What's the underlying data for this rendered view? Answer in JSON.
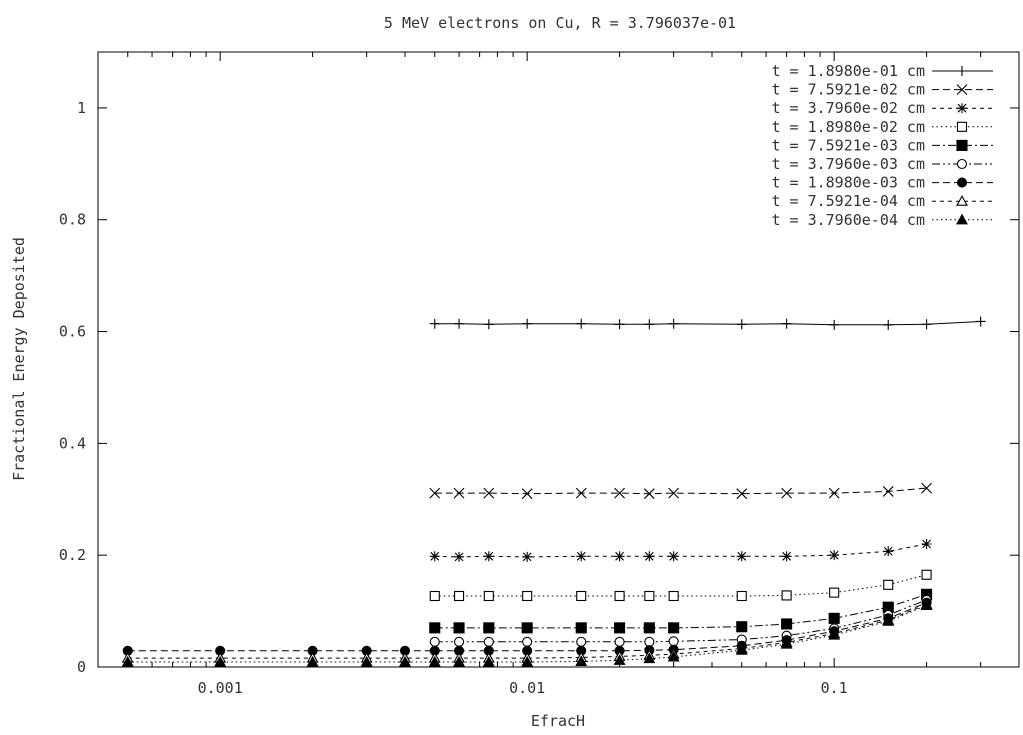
{
  "chart_data": {
    "type": "line",
    "title": "5 MeV electrons on Cu, R = 3.796037e-01",
    "xlabel": "EfracH",
    "ylabel": "Fractional Energy Deposited",
    "x_scale": "log",
    "xlim": [
      0.0004,
      0.4
    ],
    "ylim": [
      0,
      1.1
    ],
    "x_ticks": [
      "0.001",
      "0.01",
      "0.1"
    ],
    "y_ticks": [
      "0",
      "0.2",
      "0.4",
      "0.6",
      "0.8",
      "1"
    ],
    "grid": false,
    "legend_position": "top-right",
    "series": [
      {
        "name": "t = 1.8980e-01 cm",
        "marker": "plus",
        "dash": "solid",
        "points": [
          [
            0.005,
            0.614
          ],
          [
            0.006,
            0.614
          ],
          [
            0.0075,
            0.613
          ],
          [
            0.01,
            0.614
          ],
          [
            0.015,
            0.614
          ],
          [
            0.02,
            0.613
          ],
          [
            0.025,
            0.613
          ],
          [
            0.03,
            0.614
          ],
          [
            0.05,
            0.613
          ],
          [
            0.07,
            0.614
          ],
          [
            0.1,
            0.612
          ],
          [
            0.15,
            0.612
          ],
          [
            0.2,
            0.613
          ],
          [
            0.3,
            0.618
          ]
        ]
      },
      {
        "name": "t = 7.5921e-02 cm",
        "marker": "cross",
        "dash": "dashed",
        "points": [
          [
            0.005,
            0.311
          ],
          [
            0.006,
            0.311
          ],
          [
            0.0075,
            0.311
          ],
          [
            0.01,
            0.31
          ],
          [
            0.015,
            0.311
          ],
          [
            0.02,
            0.311
          ],
          [
            0.025,
            0.31
          ],
          [
            0.03,
            0.311
          ],
          [
            0.05,
            0.31
          ],
          [
            0.07,
            0.311
          ],
          [
            0.1,
            0.311
          ],
          [
            0.15,
            0.314
          ],
          [
            0.2,
            0.32
          ]
        ]
      },
      {
        "name": "t = 3.7960e-02 cm",
        "marker": "star",
        "dash": "short-dash",
        "points": [
          [
            0.005,
            0.198
          ],
          [
            0.006,
            0.197
          ],
          [
            0.0075,
            0.198
          ],
          [
            0.01,
            0.197
          ],
          [
            0.015,
            0.198
          ],
          [
            0.02,
            0.198
          ],
          [
            0.025,
            0.198
          ],
          [
            0.03,
            0.198
          ],
          [
            0.05,
            0.198
          ],
          [
            0.07,
            0.198
          ],
          [
            0.1,
            0.2
          ],
          [
            0.15,
            0.207
          ],
          [
            0.2,
            0.22
          ]
        ]
      },
      {
        "name": "t = 1.8980e-02 cm",
        "marker": "open-square",
        "dash": "dotted",
        "points": [
          [
            0.005,
            0.127
          ],
          [
            0.006,
            0.127
          ],
          [
            0.0075,
            0.127
          ],
          [
            0.01,
            0.127
          ],
          [
            0.015,
            0.127
          ],
          [
            0.02,
            0.127
          ],
          [
            0.025,
            0.127
          ],
          [
            0.03,
            0.127
          ],
          [
            0.05,
            0.127
          ],
          [
            0.07,
            0.128
          ],
          [
            0.1,
            0.133
          ],
          [
            0.15,
            0.147
          ],
          [
            0.2,
            0.165
          ]
        ]
      },
      {
        "name": "t = 7.5921e-03 cm",
        "marker": "filled-square",
        "dash": "dash-dot",
        "points": [
          [
            0.005,
            0.07
          ],
          [
            0.006,
            0.07
          ],
          [
            0.0075,
            0.07
          ],
          [
            0.01,
            0.07
          ],
          [
            0.015,
            0.07
          ],
          [
            0.02,
            0.07
          ],
          [
            0.025,
            0.07
          ],
          [
            0.03,
            0.07
          ],
          [
            0.05,
            0.072
          ],
          [
            0.07,
            0.077
          ],
          [
            0.1,
            0.087
          ],
          [
            0.15,
            0.107
          ],
          [
            0.2,
            0.13
          ]
        ]
      },
      {
        "name": "t = 3.7960e-03 cm",
        "marker": "open-circle",
        "dash": "dash-dot-dot",
        "points": [
          [
            0.005,
            0.045
          ],
          [
            0.006,
            0.045
          ],
          [
            0.0075,
            0.045
          ],
          [
            0.01,
            0.045
          ],
          [
            0.015,
            0.045
          ],
          [
            0.02,
            0.045
          ],
          [
            0.025,
            0.045
          ],
          [
            0.03,
            0.046
          ],
          [
            0.05,
            0.049
          ],
          [
            0.07,
            0.056
          ],
          [
            0.1,
            0.069
          ],
          [
            0.15,
            0.093
          ],
          [
            0.2,
            0.12
          ]
        ]
      },
      {
        "name": "t = 1.8980e-03 cm",
        "marker": "filled-circle",
        "dash": "dashed",
        "points": [
          [
            0.0005,
            0.029
          ],
          [
            0.001,
            0.029
          ],
          [
            0.002,
            0.029
          ],
          [
            0.003,
            0.029
          ],
          [
            0.004,
            0.029
          ],
          [
            0.005,
            0.029
          ],
          [
            0.006,
            0.029
          ],
          [
            0.0075,
            0.029
          ],
          [
            0.01,
            0.029
          ],
          [
            0.015,
            0.029
          ],
          [
            0.02,
            0.029
          ],
          [
            0.025,
            0.03
          ],
          [
            0.03,
            0.031
          ],
          [
            0.05,
            0.038
          ],
          [
            0.07,
            0.048
          ],
          [
            0.1,
            0.064
          ],
          [
            0.15,
            0.087
          ],
          [
            0.2,
            0.115
          ]
        ]
      },
      {
        "name": "t = 7.5921e-04 cm",
        "marker": "open-triangle",
        "dash": "short-dash",
        "points": [
          [
            0.0005,
            0.016
          ],
          [
            0.001,
            0.016
          ],
          [
            0.002,
            0.016
          ],
          [
            0.003,
            0.016
          ],
          [
            0.004,
            0.016
          ],
          [
            0.005,
            0.016
          ],
          [
            0.006,
            0.016
          ],
          [
            0.0075,
            0.016
          ],
          [
            0.01,
            0.016
          ],
          [
            0.015,
            0.017
          ],
          [
            0.02,
            0.019
          ],
          [
            0.025,
            0.021
          ],
          [
            0.03,
            0.023
          ],
          [
            0.05,
            0.033
          ],
          [
            0.07,
            0.044
          ],
          [
            0.1,
            0.06
          ],
          [
            0.15,
            0.084
          ],
          [
            0.2,
            0.112
          ]
        ]
      },
      {
        "name": "t = 3.7960e-04 cm",
        "marker": "filled-triangle",
        "dash": "dotted",
        "points": [
          [
            0.0005,
            0.009
          ],
          [
            0.001,
            0.009
          ],
          [
            0.002,
            0.009
          ],
          [
            0.003,
            0.009
          ],
          [
            0.004,
            0.009
          ],
          [
            0.005,
            0.009
          ],
          [
            0.006,
            0.009
          ],
          [
            0.0075,
            0.009
          ],
          [
            0.01,
            0.009
          ],
          [
            0.015,
            0.01
          ],
          [
            0.02,
            0.012
          ],
          [
            0.025,
            0.015
          ],
          [
            0.03,
            0.018
          ],
          [
            0.05,
            0.03
          ],
          [
            0.07,
            0.041
          ],
          [
            0.1,
            0.057
          ],
          [
            0.15,
            0.082
          ],
          [
            0.2,
            0.11
          ]
        ]
      }
    ]
  }
}
